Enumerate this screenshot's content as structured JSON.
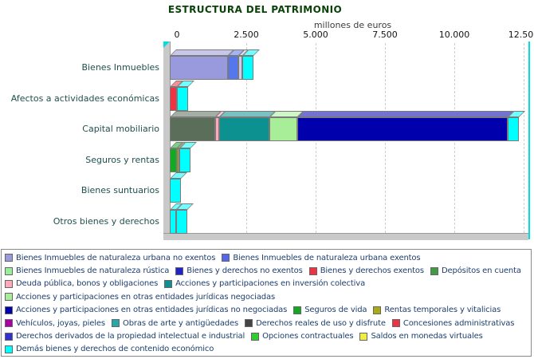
{
  "title": "ESTRUCTURA DEL PATRIMONIO",
  "axis": {
    "label": "millones de euros",
    "ticks": [
      {
        "label": "0",
        "value": 0
      },
      {
        "label": "2.500",
        "value": 2500
      },
      {
        "label": "5.000",
        "value": 5000
      },
      {
        "label": "7.500",
        "value": 7500
      },
      {
        "label": "10.000",
        "value": 10000
      },
      {
        "label": "12.500",
        "value": 12500
      }
    ]
  },
  "chart_data": {
    "type": "bar",
    "orientation": "horizontal",
    "stacked": true,
    "title": "ESTRUCTURA DEL PATRIMONIO",
    "xlabel": "millones de euros",
    "xlim": [
      0,
      12500
    ],
    "xticks": [
      0,
      2500,
      5000,
      7500,
      10000,
      12500
    ],
    "grid": "vertical-dashed",
    "unit": "millones de euros",
    "categories": [
      "Bienes Inmuebles",
      "Afectos a actividades económicas",
      "Capital mobiliario",
      "Seguros y rentas",
      "Bienes suntuarios",
      "Otros bienes y derechos"
    ],
    "bars": [
      {
        "category": "Bienes Inmuebles",
        "segments": [
          {
            "label": "Bienes Inmuebles de naturaleza urbana no exentos",
            "color": "#9999DD",
            "value": 2100
          },
          {
            "label": "Bienes Inmuebles de naturaleza urbana exentos",
            "color": "#5577EE",
            "value": 370
          },
          {
            "label": "Bienes Inmuebles de naturaleza rústica",
            "color": "#CCCCEE",
            "value": 140
          }
        ]
      },
      {
        "category": "Afectos a actividades económicas",
        "segments": [
          {
            "label": "Bienes y derechos exentos",
            "color": "#EE3344",
            "value": 260
          }
        ]
      },
      {
        "category": "Capital mobiliario",
        "segments": [
          {
            "label": "Depósitos en cuenta",
            "color": "#5A6E5A",
            "value": 1640
          },
          {
            "label": "Deuda pública, bonos y obligaciones",
            "color": "#FFAABB",
            "value": 150
          },
          {
            "label": "Acciones y participaciones en inversión colectiva",
            "color": "#0D9090",
            "value": 1800
          },
          {
            "label": "Acciones y participaciones en otras entidades jurídicas negociadas",
            "color": "#A8EE98",
            "value": 1000
          },
          {
            "label": "Acciones y participaciones en otras entidades jurídicas no negociadas",
            "color": "#0000AD",
            "value": 7600
          }
        ]
      },
      {
        "category": "Seguros y rentas",
        "segments": [
          {
            "label": "Seguros de vida",
            "color": "#11AA22",
            "value": 260
          },
          {
            "label": "Rentas temporales y vitalicias",
            "color": "#AAAA11",
            "value": 60
          }
        ]
      },
      {
        "category": "Bienes suntuarios",
        "segments": []
      },
      {
        "category": "Otros bienes y derechos",
        "segments": [
          {
            "label": "Demás bienes y derechos de contenido económico",
            "color": "#00FFFF",
            "value": 230
          }
        ]
      }
    ],
    "end_cap": {
      "color": "#00FFFF",
      "note": "3D end face drawn on every bar"
    }
  },
  "legend": {
    "rows": [
      [
        {
          "label": "Bienes Inmuebles de naturaleza urbana no exentos",
          "color": "#9999DD"
        },
        {
          "label": "Bienes Inmuebles de naturaleza urbana exentos",
          "color": "#5566EE"
        }
      ],
      [
        {
          "label": "Bienes Inmuebles de naturaleza rústica",
          "color": "#99EE99"
        },
        {
          "label": "Bienes y derechos no exentos",
          "color": "#2222CC"
        },
        {
          "label": "Bienes y derechos exentos",
          "color": "#EE3344"
        },
        {
          "label": "Depósitos en cuenta",
          "color": "#449944"
        }
      ],
      [
        {
          "label": "Deuda pública, bonos y obligaciones",
          "color": "#FFAABB"
        },
        {
          "label": "Acciones y participaciones en inversión colectiva",
          "color": "#0D9090"
        }
      ],
      [
        {
          "label": "Acciones y participaciones en otras entidades jurídicas negociadas",
          "color": "#A8EE98"
        }
      ],
      [
        {
          "label": "Acciones y participaciones en otras entidades jurídicas no negociadas",
          "color": "#0000AD"
        },
        {
          "label": "Seguros de vida",
          "color": "#11AA22"
        },
        {
          "label": "Rentas temporales y vitalicias",
          "color": "#AAAA11"
        }
      ],
      [
        {
          "label": "Vehículos, joyas, pieles",
          "color": "#AA00AA"
        },
        {
          "label": "Obras de arte y antigüedades",
          "color": "#22AAAA"
        },
        {
          "label": "Derechos reales de uso y disfrute",
          "color": "#444444"
        },
        {
          "label": "Concesiones administrativas",
          "color": "#EE3344"
        }
      ],
      [
        {
          "label": "Derechos derivados de la propiedad intelectual e industrial",
          "color": "#3333CC"
        },
        {
          "label": "Opciones contractuales",
          "color": "#33CC33"
        },
        {
          "label": "Saldos en monedas virtuales",
          "color": "#EEEE44"
        }
      ],
      [
        {
          "label": "Demás bienes y derechos de contenido económico",
          "color": "#00FFFF"
        }
      ]
    ]
  },
  "style": {
    "title_color": "#0A420A",
    "category_label_color": "#1F4F4F",
    "legend_text_color": "#1E3F6E",
    "axis_line_color": "#00DEDE",
    "wall_color": "#C9C9C9",
    "gridline_color": "#CFCFCF",
    "outline_color": "#7A7A7A"
  }
}
